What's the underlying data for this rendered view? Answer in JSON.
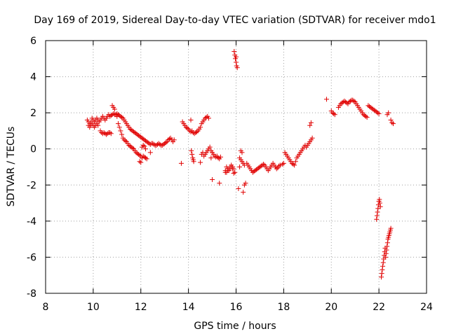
{
  "chart_data": {
    "type": "scatter",
    "title": "Day 169 of 2019, Sidereal Day-to-day VTEC variation (SDTVAR) for receiver mdo1",
    "xlabel": "GPS time / hours",
    "ylabel": "SDTVAR / TECUs",
    "xlim": [
      8,
      24
    ],
    "ylim": [
      -8,
      6
    ],
    "xticks": [
      8,
      10,
      12,
      14,
      16,
      18,
      20,
      22,
      24
    ],
    "yticks": [
      -8,
      -6,
      -4,
      -2,
      0,
      2,
      4,
      6
    ],
    "grid": true,
    "marker": "+",
    "color": "#e00000",
    "series": [
      {
        "name": "SDTVAR",
        "x": [
          9.75,
          9.8,
          9.85,
          9.9,
          9.95,
          10.0,
          10.05,
          10.1,
          10.15,
          10.2,
          10.25,
          10.3,
          10.35,
          10.4,
          10.45,
          10.5,
          10.55,
          10.6,
          10.65,
          10.7,
          10.75,
          10.8,
          10.85,
          10.9,
          10.95,
          11.0,
          11.05,
          11.1,
          11.15,
          11.2,
          11.25,
          11.3,
          11.35,
          11.4,
          11.45,
          11.5,
          11.55,
          11.6,
          11.65,
          11.7,
          11.75,
          11.8,
          11.85,
          11.9,
          11.95,
          12.0,
          12.05,
          12.1,
          12.15,
          12.2,
          12.25,
          12.3,
          12.35,
          12.4,
          12.45,
          12.5,
          12.55,
          12.6,
          12.65,
          12.7,
          12.75,
          12.8,
          12.85,
          12.9,
          12.95,
          13.0,
          13.05,
          13.1,
          13.15,
          13.2,
          13.25,
          13.3,
          13.35,
          13.4,
          9.8,
          9.85,
          9.9,
          9.95,
          10.0,
          10.05,
          10.1,
          10.15,
          10.2,
          10.3,
          10.35,
          10.4,
          10.45,
          10.5,
          10.55,
          10.6,
          10.65,
          10.7,
          10.75,
          10.8,
          10.85,
          10.9,
          10.95,
          11.0,
          11.05,
          11.1,
          11.15,
          11.2,
          11.25,
          11.3,
          11.35,
          11.4,
          11.45,
          11.5,
          11.55,
          11.6,
          11.65,
          11.7,
          11.75,
          11.8,
          11.85,
          11.9,
          11.95,
          12.0,
          12.05,
          12.1,
          12.15,
          12.2,
          12.25,
          11.95,
          12.0,
          12.05,
          12.1,
          12.15,
          12.2,
          12.4,
          13.7,
          13.75,
          13.8,
          13.85,
          13.9,
          13.95,
          14.0,
          14.05,
          14.1,
          14.15,
          14.2,
          14.25,
          14.3,
          14.35,
          14.4,
          14.45,
          14.5,
          14.55,
          14.6,
          14.65,
          14.7,
          14.75,
          14.8,
          14.85,
          14.1,
          14.12,
          14.15,
          14.18,
          14.2,
          14.22,
          14.5,
          14.55,
          14.6,
          14.65,
          14.7,
          14.75,
          14.8,
          14.85,
          14.9,
          14.95,
          15.0,
          15.05,
          15.1,
          15.15,
          15.2,
          15.25,
          15.3,
          15.35,
          14.95,
          15.0,
          15.3,
          15.55,
          15.6,
          15.65,
          15.7,
          15.75,
          15.8,
          15.85,
          15.55,
          15.6,
          15.65,
          15.7,
          15.75,
          15.8,
          15.85,
          15.9,
          15.95,
          15.9,
          15.92,
          15.95,
          15.97,
          16.0,
          16.02,
          16.05,
          16.0,
          16.1,
          16.15,
          16.2,
          16.25,
          16.3,
          16.35,
          16.15,
          16.2,
          16.25,
          16.3,
          16.35,
          16.4,
          16.45,
          16.5,
          16.55,
          16.6,
          16.65,
          16.7,
          16.75,
          16.8,
          16.85,
          16.9,
          16.95,
          17.0,
          17.05,
          17.1,
          17.15,
          17.2,
          17.25,
          17.3,
          17.35,
          17.4,
          17.45,
          17.5,
          17.55,
          17.6,
          17.65,
          17.7,
          17.75,
          17.8,
          17.85,
          17.95,
          18.0,
          18.05,
          18.1,
          18.15,
          18.2,
          18.25,
          18.3,
          18.35,
          18.4,
          18.45,
          18.5,
          18.55,
          18.6,
          18.65,
          18.7,
          18.75,
          18.8,
          18.85,
          18.9,
          18.95,
          19.0,
          19.05,
          19.1,
          19.15,
          19.2,
          19.1,
          19.15,
          19.8,
          20.0,
          20.05,
          20.1,
          20.15,
          20.3,
          20.35,
          20.4,
          20.45,
          20.5,
          20.55,
          20.6,
          20.65,
          20.7,
          20.75,
          20.8,
          20.85,
          20.9,
          20.95,
          21.0,
          21.05,
          21.1,
          21.15,
          21.2,
          21.25,
          21.3,
          21.35,
          21.4,
          21.45,
          21.5,
          21.55,
          21.6,
          21.65,
          21.7,
          21.75,
          21.8,
          21.85,
          21.9,
          21.95,
          22.0,
          21.9,
          21.92,
          21.94,
          21.96,
          21.98,
          22.0,
          22.02,
          22.04,
          22.06,
          22.1,
          22.12,
          22.14,
          22.16,
          22.18,
          22.2,
          22.22,
          22.24,
          22.26,
          22.28,
          22.3,
          22.32,
          22.34,
          22.36,
          22.38,
          22.4,
          22.42,
          22.44,
          22.46,
          22.48,
          22.5,
          22.35,
          22.4,
          22.5,
          22.55,
          22.6
        ],
        "y": [
          1.6,
          1.5,
          1.4,
          1.5,
          1.7,
          1.6,
          1.5,
          1.6,
          1.7,
          1.6,
          1.5,
          1.6,
          1.7,
          1.8,
          1.7,
          1.6,
          1.7,
          1.8,
          1.9,
          1.8,
          1.85,
          1.9,
          1.95,
          1.9,
          1.9,
          1.95,
          1.9,
          1.85,
          1.8,
          1.75,
          1.7,
          1.6,
          1.5,
          1.4,
          1.3,
          1.2,
          1.1,
          1.05,
          1.0,
          0.95,
          0.9,
          0.85,
          0.8,
          0.75,
          0.7,
          0.65,
          0.6,
          0.55,
          0.5,
          0.45,
          0.4,
          0.35,
          0.3,
          0.25,
          0.3,
          0.3,
          0.25,
          0.2,
          0.2,
          0.25,
          0.3,
          0.25,
          0.2,
          0.2,
          0.25,
          0.3,
          0.35,
          0.4,
          0.5,
          0.55,
          0.6,
          0.5,
          0.4,
          0.5,
          1.3,
          1.2,
          1.3,
          1.4,
          1.3,
          1.2,
          1.3,
          1.4,
          1.3,
          1.0,
          0.9,
          0.85,
          0.9,
          0.85,
          0.8,
          0.85,
          0.9,
          0.9,
          0.85,
          2.4,
          2.3,
          2.2,
          1.9,
          1.8,
          1.4,
          1.2,
          1.0,
          0.8,
          0.6,
          0.5,
          0.45,
          0.4,
          0.3,
          0.2,
          0.15,
          0.1,
          0.05,
          0.0,
          -0.1,
          -0.2,
          -0.25,
          -0.3,
          -0.35,
          -0.4,
          -0.5,
          -0.4,
          -0.45,
          -0.5,
          -0.55,
          -0.7,
          -0.75,
          0.1,
          0.2,
          0.15,
          0.0,
          -0.2,
          -0.8,
          1.5,
          1.4,
          1.3,
          1.2,
          1.15,
          1.1,
          1.0,
          0.95,
          1.0,
          0.9,
          0.85,
          0.9,
          0.95,
          1.0,
          1.1,
          1.2,
          1.4,
          1.5,
          1.6,
          1.7,
          1.75,
          1.8,
          1.7,
          1.6,
          -0.1,
          -0.3,
          -0.5,
          -0.6,
          -0.7,
          -0.75,
          -0.3,
          -0.2,
          -0.4,
          -0.3,
          -0.2,
          -0.1,
          0.0,
          0.1,
          -0.1,
          -0.2,
          -0.3,
          -0.4,
          -0.45,
          -0.4,
          -0.5,
          -0.55,
          -0.45,
          -0.5,
          -1.7,
          -1.9,
          -1.3,
          -1.0,
          -1.1,
          -1.2,
          -1.1,
          -1.0,
          -1.1,
          -1.2,
          -1.3,
          -1.2,
          -1.1,
          -1.0,
          -0.9,
          -1.0,
          -1.1,
          -1.3,
          -1.35,
          5.4,
          5.2,
          5.0,
          4.8,
          4.6,
          4.5,
          5.1,
          -2.2,
          -0.5,
          -0.6,
          -0.7,
          -0.8,
          -0.9,
          -1.0,
          -0.1,
          -0.2,
          -2.4,
          -2.0,
          -1.9,
          -0.8,
          -0.9,
          -1.0,
          -1.1,
          -1.2,
          -1.3,
          -1.25,
          -1.2,
          -1.15,
          -1.1,
          -1.05,
          -1.0,
          -0.95,
          -0.9,
          -0.85,
          -0.9,
          -1.0,
          -1.1,
          -1.2,
          -1.1,
          -1.0,
          -0.9,
          -0.8,
          -0.9,
          -1.0,
          -1.1,
          -1.05,
          -0.95,
          -0.9,
          -0.85,
          -0.8,
          -0.2,
          -0.3,
          -0.4,
          -0.5,
          -0.6,
          -0.7,
          -0.8,
          -0.85,
          -0.9,
          -0.7,
          -0.5,
          -0.4,
          -0.3,
          -0.2,
          -0.1,
          0.0,
          0.1,
          0.2,
          0.1,
          0.2,
          0.3,
          0.4,
          0.5,
          0.6,
          1.3,
          1.45,
          2.75,
          2.1,
          2.0,
          1.95,
          1.9,
          2.3,
          2.4,
          2.5,
          2.55,
          2.6,
          2.65,
          2.6,
          2.55,
          2.5,
          2.6,
          2.65,
          2.7,
          2.7,
          2.65,
          2.6,
          2.5,
          2.4,
          2.3,
          2.2,
          2.1,
          2.0,
          1.9,
          1.85,
          1.8,
          1.75,
          2.4,
          2.35,
          2.3,
          2.25,
          2.2,
          2.15,
          2.1,
          2.05,
          2.0,
          1.95,
          -3.9,
          -3.7,
          -3.5,
          -3.3,
          -3.1,
          -2.9,
          -2.8,
          -3.0,
          -3.2,
          -7.1,
          -6.9,
          -6.7,
          -6.5,
          -6.3,
          -6.1,
          -5.9,
          -5.7,
          -5.5,
          -6.0,
          -5.8,
          -5.6,
          -5.4,
          -5.2,
          -5.0,
          -4.9,
          -4.8,
          -4.7,
          -4.6,
          -4.5,
          -4.4,
          1.9,
          2.0,
          1.6,
          1.45,
          1.4
        ]
      }
    ]
  }
}
